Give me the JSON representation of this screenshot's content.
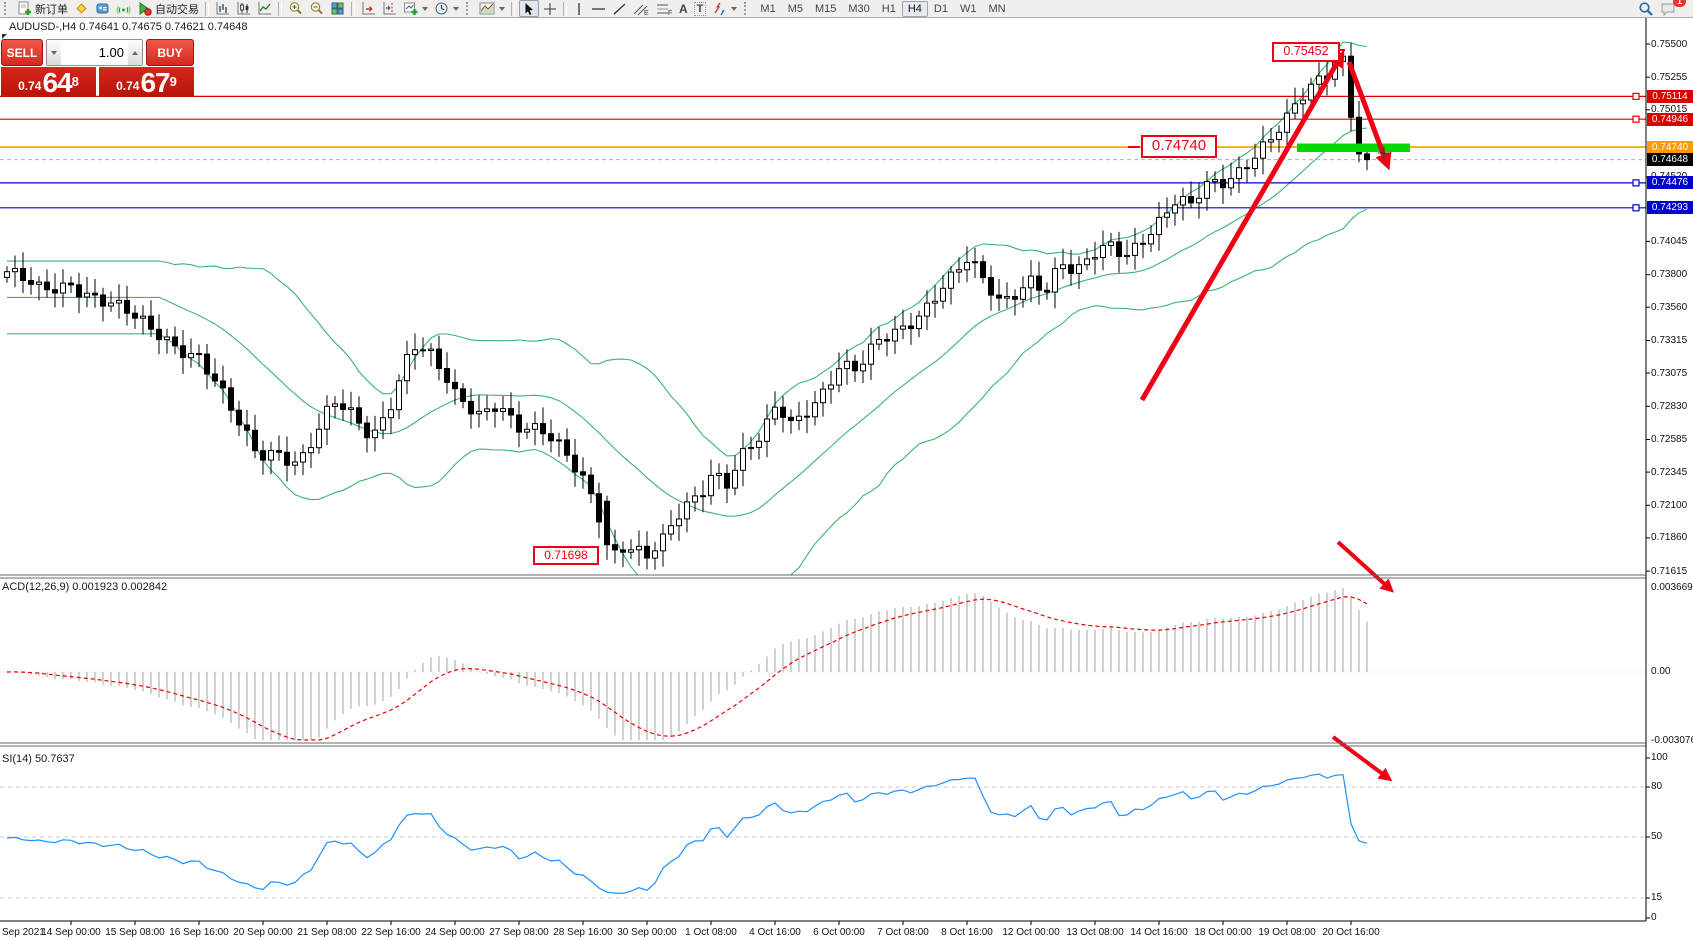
{
  "toolbar": {
    "new_order_label": "新订单",
    "autotrading_label": "自动交易",
    "timeframes": [
      "M1",
      "M5",
      "M15",
      "M30",
      "H1",
      "H4",
      "D1",
      "W1",
      "MN"
    ],
    "active_timeframe": "H4",
    "glyphs": {
      "text_tool": "A",
      "label_tool": "T",
      "channel": "E",
      "fibonacci": "F"
    },
    "notification_count": "1"
  },
  "chart": {
    "title": "AUDUSD-,H4  0.74641 0.74675 0.74621 0.74648",
    "trade_panel": {
      "sell_label": "SELL",
      "buy_label": "BUY",
      "volume": "1.00",
      "sell_small": "0.74",
      "sell_big": "64",
      "sell_sup": "8",
      "buy_small": "0.74",
      "buy_big": "67",
      "buy_sup": "9"
    },
    "annotations": [
      {
        "text": "0.75452"
      },
      {
        "text": "0.74740"
      },
      {
        "text": "0.71698"
      }
    ],
    "y_ticks": [
      "0.75500",
      "0.75255",
      "0.75015",
      "0.74520",
      "0.74045",
      "0.73800",
      "0.73560",
      "0.73315",
      "0.73075",
      "0.72830",
      "0.72585",
      "0.72345",
      "0.72100",
      "0.71860",
      "0.71615"
    ],
    "badges": [
      {
        "label": "0.75114",
        "color": "#dd0000"
      },
      {
        "label": "0.74946",
        "color": "#dd0000"
      },
      {
        "label": "0.74740",
        "color": "#ff9a00"
      },
      {
        "label": "0.74648",
        "color": "#000000"
      },
      {
        "label": "0.74476",
        "color": "#0000cc"
      },
      {
        "label": "0.74293",
        "color": "#0000cc"
      }
    ],
    "levels": [
      {
        "price": 0.75114,
        "color": "#e00000",
        "style": "solid",
        "width": 1.2
      },
      {
        "price": 0.74946,
        "color": "#e00000",
        "style": "solid",
        "width": 1.2
      },
      {
        "price": 0.7474,
        "color": "#ff9a00",
        "style": "solid",
        "width": 1.6
      },
      {
        "price": 0.74648,
        "color": "#b0b0b0",
        "style": "dashed",
        "width": 1
      },
      {
        "price": 0.74476,
        "color": "#0000cc",
        "style": "solid",
        "width": 1.2
      },
      {
        "price": 0.74293,
        "color": "#0000cc",
        "style": "solid",
        "width": 1.2
      }
    ],
    "x_labels": [
      "Sep 2021",
      "14 Sep 00:00",
      "15 Sep 08:00",
      "16 Sep 16:00",
      "20 Sep 00:00",
      "21 Sep 08:00",
      "22 Sep 16:00",
      "24 Sep 00:00",
      "27 Sep 08:00",
      "28 Sep 16:00",
      "30 Sep 00:00",
      "1 Oct 08:00",
      "4 Oct 16:00",
      "6 Oct 00:00",
      "7 Oct 08:00",
      "8 Oct 16:00",
      "12 Oct 00:00",
      "13 Oct 08:00",
      "14 Oct 16:00",
      "18 Oct 00:00",
      "19 Oct 08:00",
      "20 Oct 16:00"
    ],
    "chart_data": {
      "type": "candlestick",
      "symbol": "AUDUSD",
      "period": "H4",
      "visible_high": 0.75452,
      "visible_low": 0.71698,
      "last_close": 0.74648,
      "price_anchors": [
        [
          7,
          0.7378
        ],
        [
          40,
          0.7369
        ],
        [
          70,
          0.7377
        ],
        [
          100,
          0.736
        ],
        [
          135,
          0.7346
        ],
        [
          165,
          0.7336
        ],
        [
          199,
          0.732
        ],
        [
          218,
          0.7295
        ],
        [
          238,
          0.7268
        ],
        [
          258,
          0.7247
        ],
        [
          278,
          0.7253
        ],
        [
          298,
          0.7243
        ],
        [
          318,
          0.7263
        ],
        [
          333,
          0.7283
        ],
        [
          352,
          0.7274
        ],
        [
          372,
          0.7261
        ],
        [
          392,
          0.7291
        ],
        [
          412,
          0.7331
        ],
        [
          432,
          0.7317
        ],
        [
          455,
          0.7288
        ],
        [
          478,
          0.7278
        ],
        [
          498,
          0.729
        ],
        [
          519,
          0.7269
        ],
        [
          542,
          0.7261
        ],
        [
          562,
          0.7248
        ],
        [
          583,
          0.7231
        ],
        [
          597,
          0.7212
        ],
        [
          610,
          0.7176
        ],
        [
          625,
          0.7182
        ],
        [
          647,
          0.7169
        ],
        [
          662,
          0.7179
        ],
        [
          682,
          0.7206
        ],
        [
          702,
          0.7224
        ],
        [
          713,
          0.7239
        ],
        [
          727,
          0.7229
        ],
        [
          742,
          0.7246
        ],
        [
          762,
          0.7257
        ],
        [
          777,
          0.7281
        ],
        [
          792,
          0.7269
        ],
        [
          807,
          0.7283
        ],
        [
          822,
          0.7296
        ],
        [
          840,
          0.7315
        ],
        [
          857,
          0.7307
        ],
        [
          877,
          0.7326
        ],
        [
          903,
          0.7341
        ],
        [
          922,
          0.7356
        ],
        [
          941,
          0.7373
        ],
        [
          956,
          0.7381
        ],
        [
          968,
          0.7389
        ],
        [
          986,
          0.7369
        ],
        [
          1001,
          0.7357
        ],
        [
          1016,
          0.7369
        ],
        [
          1032,
          0.7381
        ],
        [
          1046,
          0.7371
        ],
        [
          1061,
          0.7389
        ],
        [
          1076,
          0.7377
        ],
        [
          1096,
          0.7393
        ],
        [
          1111,
          0.7401
        ],
        [
          1126,
          0.7397
        ],
        [
          1141,
          0.7409
        ],
        [
          1160,
          0.7421
        ],
        [
          1176,
          0.7433
        ],
        [
          1191,
          0.7427
        ],
        [
          1206,
          0.7443
        ],
        [
          1224,
          0.7449
        ],
        [
          1241,
          0.7461
        ],
        [
          1256,
          0.7473
        ],
        [
          1271,
          0.7481
        ],
        [
          1288,
          0.7493
        ],
        [
          1301,
          0.7506
        ],
        [
          1316,
          0.7519
        ],
        [
          1331,
          0.7531
        ],
        [
          1341,
          0.7539
        ],
        [
          1347,
          0.7542
        ],
        [
          1352,
          0.75
        ],
        [
          1360,
          0.7469
        ],
        [
          1367,
          0.74648
        ]
      ],
      "bollinger_color": "#3cb371",
      "highlight_bar_color": "#00d800"
    }
  },
  "macd": {
    "label": "ACD(12,26,9) 0.001923 0.002842",
    "scale_max": "0.003669",
    "scale_zero": "0.00",
    "scale_min": "-0.003076",
    "histogram_color": "#bdbdbd",
    "signal_color": "#ee0000"
  },
  "rsi": {
    "label": "SI(14) 50.7637",
    "scale": [
      "100",
      "80",
      "50",
      "15",
      "0"
    ],
    "line_color": "#1e90ff"
  }
}
